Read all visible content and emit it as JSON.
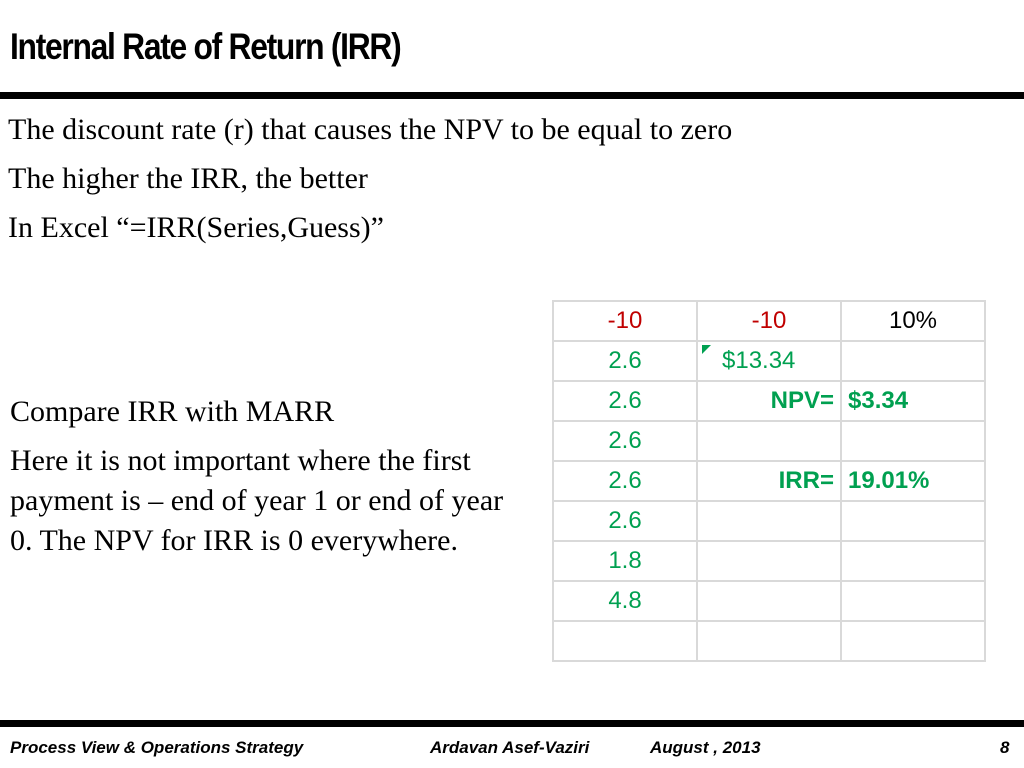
{
  "slide": {
    "title": "Internal Rate of Return (IRR)",
    "bullets": [
      "The discount rate (r) that causes the NPV to be equal to zero",
      "The higher the IRR, the better",
      "In Excel “=IRR(Series,Guess)”"
    ],
    "left_text": [
      "Compare IRR with MARR",
      "Here it is not important where the first payment is – end of year 1 or end of year 0. The NPV for IRR is 0 everywhere."
    ]
  },
  "sheet": {
    "rows": [
      [
        "-10",
        "-10",
        "10%"
      ],
      [
        "2.6",
        "$13.34",
        ""
      ],
      [
        "2.6",
        "NPV=",
        "$3.34"
      ],
      [
        "2.6",
        "",
        ""
      ],
      [
        "2.6",
        "IRR=",
        "19.01%"
      ],
      [
        "2.6",
        "",
        ""
      ],
      [
        "1.8",
        "",
        ""
      ],
      [
        "4.8",
        "",
        ""
      ],
      [
        "",
        "",
        ""
      ]
    ]
  },
  "colors": {
    "negative": "#c00000",
    "result": "#00a050",
    "grid": "#d9d9d9"
  },
  "footer": {
    "course": "Process View & Operations Strategy",
    "author": "Ardavan Asef-Vaziri",
    "date": "August , 2013",
    "page": "8"
  }
}
